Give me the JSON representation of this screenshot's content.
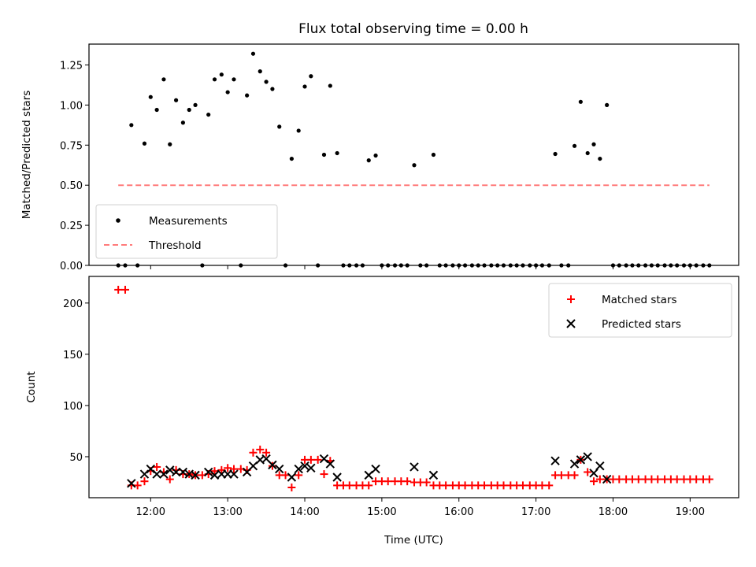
{
  "title": "Flux total observing time = 0.00 h",
  "chart_data": [
    {
      "type": "scatter",
      "ylabel": "Matched/Predicted stars",
      "xlabel": "",
      "ylim": [
        0,
        1.38
      ],
      "xlim_hours": [
        11.2,
        19.63
      ],
      "y_ticks": [
        "0.00",
        "0.25",
        "0.50",
        "0.75",
        "1.00",
        "1.25"
      ],
      "y_tick_values": [
        0,
        0.25,
        0.5,
        0.75,
        1.0,
        1.25
      ],
      "legend": {
        "position": "lower-left",
        "entries": [
          "Measurements",
          "Threshold"
        ]
      },
      "series": [
        {
          "name": "Measurements",
          "marker": "dot",
          "color": "#000000",
          "points": [
            [
              11.58,
              0.0
            ],
            [
              11.67,
              0.0
            ],
            [
              11.75,
              0.875
            ],
            [
              11.83,
              0.0
            ],
            [
              11.92,
              0.76
            ],
            [
              12.0,
              1.05
            ],
            [
              12.08,
              0.97
            ],
            [
              12.17,
              1.16
            ],
            [
              12.25,
              0.755
            ],
            [
              12.33,
              1.03
            ],
            [
              12.42,
              0.89
            ],
            [
              12.5,
              0.97
            ],
            [
              12.58,
              1.0
            ],
            [
              12.67,
              0.0
            ],
            [
              12.75,
              0.94
            ],
            [
              12.83,
              1.16
            ],
            [
              12.92,
              1.19
            ],
            [
              13.0,
              1.08
            ],
            [
              13.08,
              1.16
            ],
            [
              13.17,
              0.0
            ],
            [
              13.25,
              1.06
            ],
            [
              13.33,
              1.32
            ],
            [
              13.42,
              1.21
            ],
            [
              13.5,
              1.145
            ],
            [
              13.58,
              1.1
            ],
            [
              13.67,
              0.865
            ],
            [
              13.75,
              0.0
            ],
            [
              13.83,
              0.665
            ],
            [
              13.92,
              0.84
            ],
            [
              14.0,
              1.115
            ],
            [
              14.08,
              1.18
            ],
            [
              14.17,
              0.0
            ],
            [
              14.25,
              0.69
            ],
            [
              14.33,
              1.12
            ],
            [
              14.42,
              0.7
            ],
            [
              14.5,
              0.0
            ],
            [
              14.58,
              0.0
            ],
            [
              14.67,
              0.0
            ],
            [
              14.75,
              0.0
            ],
            [
              14.83,
              0.655
            ],
            [
              14.92,
              0.685
            ],
            [
              15.0,
              0.0
            ],
            [
              15.08,
              0.0
            ],
            [
              15.17,
              0.0
            ],
            [
              15.25,
              0.0
            ],
            [
              15.33,
              0.0
            ],
            [
              15.42,
              0.625
            ],
            [
              15.5,
              0.0
            ],
            [
              15.58,
              0.0
            ],
            [
              15.67,
              0.69
            ],
            [
              15.75,
              0.0
            ],
            [
              15.83,
              0.0
            ],
            [
              15.92,
              0.0
            ],
            [
              16.0,
              0.0
            ],
            [
              16.08,
              0.0
            ],
            [
              16.17,
              0.0
            ],
            [
              16.25,
              0.0
            ],
            [
              16.33,
              0.0
            ],
            [
              16.42,
              0.0
            ],
            [
              16.5,
              0.0
            ],
            [
              16.58,
              0.0
            ],
            [
              16.67,
              0.0
            ],
            [
              16.75,
              0.0
            ],
            [
              16.83,
              0.0
            ],
            [
              16.92,
              0.0
            ],
            [
              17.0,
              0.0
            ],
            [
              17.08,
              0.0
            ],
            [
              17.17,
              0.0
            ],
            [
              17.25,
              0.695
            ],
            [
              17.33,
              0.0
            ],
            [
              17.42,
              0.0
            ],
            [
              17.5,
              0.745
            ],
            [
              17.58,
              1.02
            ],
            [
              17.67,
              0.7
            ],
            [
              17.75,
              0.755
            ],
            [
              17.83,
              0.665
            ],
            [
              17.92,
              1.0
            ],
            [
              18.0,
              0.0
            ],
            [
              18.08,
              0.0
            ],
            [
              18.17,
              0.0
            ],
            [
              18.25,
              0.0
            ],
            [
              18.33,
              0.0
            ],
            [
              18.42,
              0.0
            ],
            [
              18.5,
              0.0
            ],
            [
              18.58,
              0.0
            ],
            [
              18.67,
              0.0
            ],
            [
              18.75,
              0.0
            ],
            [
              18.83,
              0.0
            ],
            [
              18.92,
              0.0
            ],
            [
              19.0,
              0.0
            ],
            [
              19.08,
              0.0
            ],
            [
              19.17,
              0.0
            ],
            [
              19.25,
              0.0
            ]
          ]
        },
        {
          "name": "Threshold",
          "marker": "dashed-line",
          "color": "#ff7b7b",
          "points": [
            [
              11.58,
              0.5
            ],
            [
              19.25,
              0.5
            ]
          ]
        }
      ]
    },
    {
      "type": "scatter",
      "ylabel": "Count",
      "xlabel": "Time (UTC)",
      "ylim": [
        10,
        226
      ],
      "xlim_hours": [
        11.2,
        19.63
      ],
      "y_ticks": [
        "50",
        "100",
        "150",
        "200"
      ],
      "y_tick_values": [
        50,
        100,
        150,
        200
      ],
      "x_ticks": [
        "12:00",
        "13:00",
        "14:00",
        "15:00",
        "16:00",
        "17:00",
        "18:00",
        "19:00"
      ],
      "x_tick_values": [
        12,
        13,
        14,
        15,
        16,
        17,
        18,
        19
      ],
      "legend": {
        "position": "top-right",
        "entries": [
          "Matched stars",
          "Predicted stars"
        ]
      },
      "series": [
        {
          "name": "Matched stars",
          "marker": "plus",
          "color": "#ff0000",
          "points": [
            [
              11.58,
              213
            ],
            [
              11.67,
              213
            ],
            [
              11.75,
              22
            ],
            [
              11.83,
              22
            ],
            [
              11.92,
              26
            ],
            [
              12.0,
              36
            ],
            [
              12.08,
              40
            ],
            [
              12.17,
              35
            ],
            [
              12.25,
              28
            ],
            [
              12.33,
              37
            ],
            [
              12.42,
              33
            ],
            [
              12.5,
              33
            ],
            [
              12.58,
              32
            ],
            [
              12.67,
              32
            ],
            [
              12.75,
              33
            ],
            [
              12.83,
              36
            ],
            [
              12.92,
              37
            ],
            [
              13.0,
              39
            ],
            [
              13.08,
              38
            ],
            [
              13.17,
              38
            ],
            [
              13.25,
              37
            ],
            [
              13.33,
              54
            ],
            [
              13.42,
              57
            ],
            [
              13.5,
              54
            ],
            [
              13.58,
              41
            ],
            [
              13.67,
              32
            ],
            [
              13.75,
              32
            ],
            [
              13.83,
              20
            ],
            [
              13.92,
              32
            ],
            [
              14.0,
              47
            ],
            [
              14.08,
              47
            ],
            [
              14.17,
              47
            ],
            [
              14.25,
              33
            ],
            [
              14.33,
              46
            ],
            [
              14.42,
              22
            ],
            [
              14.5,
              22
            ],
            [
              14.58,
              22
            ],
            [
              14.67,
              22
            ],
            [
              14.75,
              22
            ],
            [
              14.83,
              22
            ],
            [
              14.92,
              26
            ],
            [
              15.0,
              26
            ],
            [
              15.08,
              26
            ],
            [
              15.17,
              26
            ],
            [
              15.25,
              26
            ],
            [
              15.33,
              26
            ],
            [
              15.42,
              25
            ],
            [
              15.5,
              25
            ],
            [
              15.58,
              25
            ],
            [
              15.67,
              22
            ],
            [
              15.75,
              22
            ],
            [
              15.83,
              22
            ],
            [
              15.92,
              22
            ],
            [
              16.0,
              22
            ],
            [
              16.08,
              22
            ],
            [
              16.17,
              22
            ],
            [
              16.25,
              22
            ],
            [
              16.33,
              22
            ],
            [
              16.42,
              22
            ],
            [
              16.5,
              22
            ],
            [
              16.58,
              22
            ],
            [
              16.67,
              22
            ],
            [
              16.75,
              22
            ],
            [
              16.83,
              22
            ],
            [
              16.92,
              22
            ],
            [
              17.0,
              22
            ],
            [
              17.08,
              22
            ],
            [
              17.17,
              22
            ],
            [
              17.25,
              32
            ],
            [
              17.33,
              32
            ],
            [
              17.42,
              32
            ],
            [
              17.5,
              32
            ],
            [
              17.58,
              47
            ],
            [
              17.67,
              35
            ],
            [
              17.75,
              26
            ],
            [
              17.83,
              28
            ],
            [
              17.92,
              28
            ],
            [
              18.0,
              28
            ],
            [
              18.08,
              28
            ],
            [
              18.17,
              28
            ],
            [
              18.25,
              28
            ],
            [
              18.33,
              28
            ],
            [
              18.42,
              28
            ],
            [
              18.5,
              28
            ],
            [
              18.58,
              28
            ],
            [
              18.67,
              28
            ],
            [
              18.75,
              28
            ],
            [
              18.83,
              28
            ],
            [
              18.92,
              28
            ],
            [
              19.0,
              28
            ],
            [
              19.08,
              28
            ],
            [
              19.17,
              28
            ],
            [
              19.25,
              28
            ]
          ]
        },
        {
          "name": "Predicted stars",
          "marker": "x",
          "color": "#000000",
          "points": [
            [
              11.75,
              24
            ],
            [
              11.92,
              33
            ],
            [
              12.0,
              38
            ],
            [
              12.08,
              33
            ],
            [
              12.17,
              33
            ],
            [
              12.25,
              37
            ],
            [
              12.33,
              35
            ],
            [
              12.42,
              35
            ],
            [
              12.5,
              33
            ],
            [
              12.58,
              32
            ],
            [
              12.75,
              35
            ],
            [
              12.83,
              32
            ],
            [
              12.92,
              33
            ],
            [
              13.0,
              33
            ],
            [
              13.08,
              33
            ],
            [
              13.25,
              35
            ],
            [
              13.33,
              41
            ],
            [
              13.42,
              47
            ],
            [
              13.5,
              48
            ],
            [
              13.58,
              42
            ],
            [
              13.67,
              38
            ],
            [
              13.83,
              30
            ],
            [
              13.92,
              38
            ],
            [
              14.0,
              41
            ],
            [
              14.08,
              39
            ],
            [
              14.25,
              48
            ],
            [
              14.33,
              43
            ],
            [
              14.42,
              30
            ],
            [
              14.83,
              32
            ],
            [
              14.92,
              38
            ],
            [
              15.42,
              40
            ],
            [
              15.67,
              32
            ],
            [
              17.25,
              46
            ],
            [
              17.5,
              43
            ],
            [
              17.58,
              47
            ],
            [
              17.67,
              50
            ],
            [
              17.75,
              34
            ],
            [
              17.83,
              41
            ],
            [
              17.92,
              28
            ]
          ]
        }
      ]
    }
  ]
}
